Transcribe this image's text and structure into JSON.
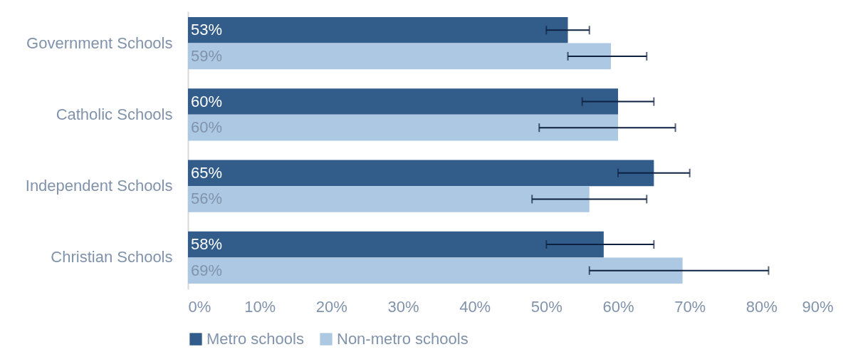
{
  "chart_data": {
    "type": "bar",
    "orientation": "horizontal",
    "categories": [
      "Government Schools",
      "Catholic Schools",
      "Independent Schools",
      "Christian Schools"
    ],
    "series": [
      {
        "name": "Metro schools",
        "color": "#325d8a",
        "values": [
          53,
          60,
          65,
          58
        ],
        "value_labels": [
          "53%",
          "60%",
          "65%",
          "58%"
        ],
        "errors": [
          [
            50,
            56
          ],
          [
            55,
            65
          ],
          [
            60,
            70
          ],
          [
            50,
            65
          ]
        ]
      },
      {
        "name": "Non-metro schools",
        "color": "#adc8e2",
        "values": [
          59,
          60,
          56,
          69
        ],
        "value_labels": [
          "59%",
          "60%",
          "56%",
          "69%"
        ],
        "errors": [
          [
            53,
            64
          ],
          [
            49,
            68
          ],
          [
            48,
            64
          ],
          [
            56,
            81
          ]
        ]
      }
    ],
    "xlim": [
      0,
      90
    ],
    "xticks": [
      {
        "value": 0,
        "label": "0%"
      },
      {
        "value": 10,
        "label": "10%"
      },
      {
        "value": 20,
        "label": "20%"
      },
      {
        "value": 30,
        "label": "30%"
      },
      {
        "value": 40,
        "label": "40%"
      },
      {
        "value": 50,
        "label": "50%"
      },
      {
        "value": 60,
        "label": "60%"
      },
      {
        "value": 70,
        "label": "70%"
      },
      {
        "value": 80,
        "label": "80%"
      },
      {
        "value": 90,
        "label": "90%"
      }
    ],
    "grid": false,
    "legend": "bottom"
  }
}
